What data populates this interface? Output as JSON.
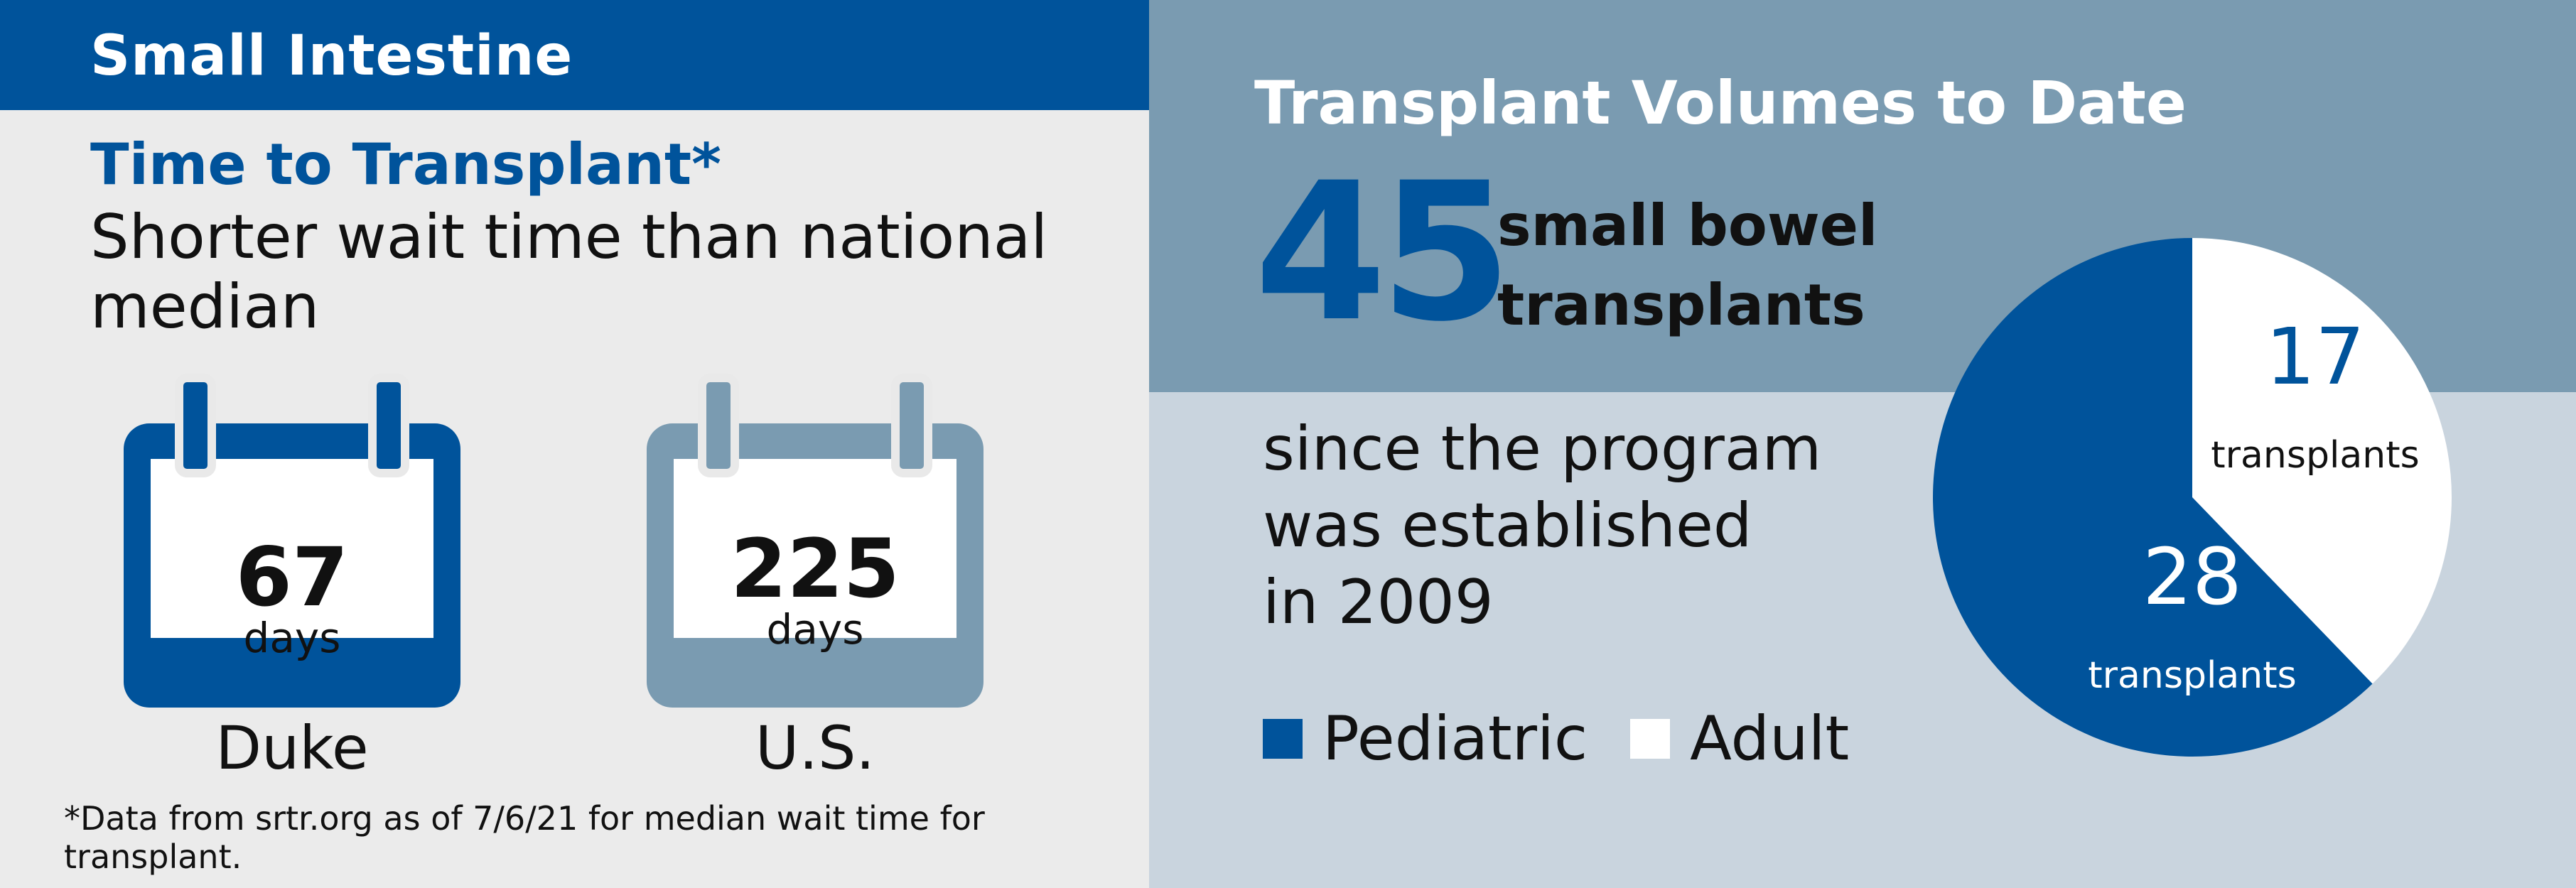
{
  "left": {
    "header": "Small Intestine",
    "subtitle": "Time to Transplant*",
    "description": "Shorter wait time than national median",
    "calendars": [
      {
        "value": "67",
        "unit": "days",
        "label": "Duke",
        "color": "#00539b"
      },
      {
        "value": "225",
        "unit": "days",
        "label": "U.S.",
        "color": "#7a9bb1"
      }
    ],
    "footnote": "*Data from srtr.org as of 7/6/21 for median wait time for transplant."
  },
  "right": {
    "title": "Transplant Volumes to Date",
    "big_number": "45",
    "big_caption_line1": "small bowel",
    "big_caption_line2": "transplants",
    "since_line1": "since the program",
    "since_line2": "was established",
    "since_line3": "in 2009"
  },
  "chart_data": {
    "type": "pie",
    "title": "",
    "series": [
      {
        "name": "Pediatric",
        "value": 28,
        "label": "transplants",
        "color": "#00539b",
        "text_color": "#ffffff"
      },
      {
        "name": "Adult",
        "value": 17,
        "label": "transplants",
        "color": "#ffffff",
        "text_color": "#00539b"
      }
    ],
    "legend": "bottom-left"
  }
}
